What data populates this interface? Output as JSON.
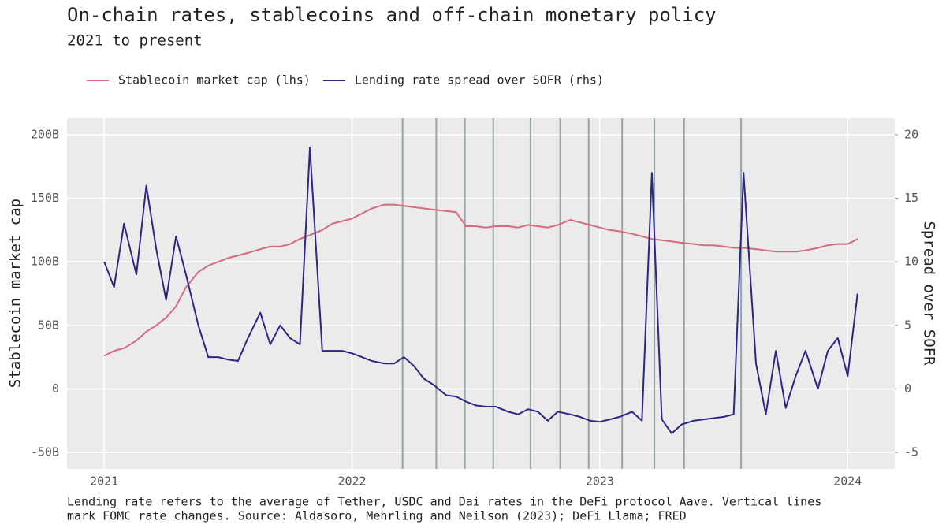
{
  "chart_data": {
    "type": "line",
    "title": "On-chain rates, stablecoins and off-chain monetary policy",
    "subtitle": "2021 to present",
    "ylabel": "Stablecoin market cap",
    "y2label": "Spread over SOFR",
    "note": [
      "Lending rate refers to the average of Tether, USDC and Dai rates in the DeFi protocol Aave. Vertical lines",
      "mark FOMC rate changes. Source: Aldasoro, Mehrling and Neilson (2023); DeFi Llama; FRED"
    ],
    "background": "#ebebeb",
    "grid": true,
    "legend": "top-left",
    "xlim": [
      2020.85,
      2024.19
    ],
    "xticks": [
      2021,
      2022,
      2023,
      2024
    ],
    "ylim": [
      -63,
      213
    ],
    "yticks": [
      {
        "value": -50,
        "label": "-50B"
      },
      0,
      {
        "value": 50,
        "label": "50B"
      },
      {
        "value": 100,
        "label": "100B"
      },
      {
        "value": 150,
        "label": "150B"
      },
      {
        "value": 200,
        "label": "200B"
      }
    ],
    "y2lim": [
      -6.3,
      21.3
    ],
    "y2ticks": [
      -5,
      0,
      5,
      10,
      15,
      20
    ],
    "fomc_dates": [
      2022.204,
      2022.34,
      2022.455,
      2022.57,
      2022.72,
      2022.84,
      2022.955,
      2023.09,
      2023.22,
      2023.34,
      2023.57
    ],
    "fomc_color": "#95a5a6",
    "x": [
      2021.0,
      2021.04,
      2021.08,
      2021.13,
      2021.17,
      2021.21,
      2021.25,
      2021.29,
      2021.33,
      2021.38,
      2021.42,
      2021.46,
      2021.5,
      2021.54,
      2021.58,
      2021.63,
      2021.67,
      2021.71,
      2021.75,
      2021.79,
      2021.83,
      2021.88,
      2021.92,
      2021.96,
      2022.0,
      2022.04,
      2022.08,
      2022.13,
      2022.17,
      2022.21,
      2022.25,
      2022.29,
      2022.33,
      2022.38,
      2022.42,
      2022.46,
      2022.5,
      2022.54,
      2022.58,
      2022.63,
      2022.67,
      2022.71,
      2022.75,
      2022.79,
      2022.83,
      2022.88,
      2022.92,
      2022.96,
      2023.0,
      2023.04,
      2023.08,
      2023.13,
      2023.17,
      2023.21,
      2023.25,
      2023.29,
      2023.33,
      2023.38,
      2023.42,
      2023.46,
      2023.5,
      2023.54,
      2023.58,
      2023.63,
      2023.67,
      2023.71,
      2023.75,
      2023.79,
      2023.83,
      2023.88,
      2023.92,
      2023.96,
      2024.0,
      2024.04
    ],
    "series": [
      {
        "name": "Stablecoin market cap (lhs)",
        "color": "#d46a7e",
        "axis": "y",
        "values": [
          26,
          30,
          32,
          38,
          45,
          50,
          56,
          65,
          80,
          92,
          97,
          100,
          103,
          105,
          107,
          110,
          112,
          112,
          114,
          118,
          121,
          125,
          130,
          132,
          134,
          138,
          142,
          145,
          145,
          144,
          143,
          142,
          141,
          140,
          139,
          128,
          128,
          127,
          128,
          128,
          127,
          129,
          128,
          127,
          129,
          133,
          131,
          129,
          127,
          125,
          124,
          122,
          120,
          118,
          117,
          116,
          115,
          114,
          113,
          113,
          112,
          111,
          111,
          110,
          109,
          108,
          108,
          108,
          109,
          111,
          113,
          114,
          114,
          118
        ]
      },
      {
        "name": "Lending rate spread over SOFR (rhs)",
        "color": "#2e2585",
        "axis": "y2",
        "values": [
          10,
          8,
          13,
          9,
          16,
          11,
          7,
          12,
          9,
          5,
          2.5,
          2.5,
          2.3,
          2.2,
          4,
          6,
          3.5,
          5,
          4,
          3.5,
          19,
          3,
          3,
          3,
          2.8,
          2.5,
          2.2,
          2.0,
          2.0,
          2.5,
          1.8,
          0.8,
          0.3,
          -0.5,
          -0.6,
          -1.0,
          -1.3,
          -1.4,
          -1.4,
          -1.8,
          -2.0,
          -1.6,
          -1.8,
          -2.5,
          -1.8,
          -2.0,
          -2.2,
          -2.5,
          -2.6,
          -2.4,
          -2.2,
          -1.8,
          -2.5,
          17,
          -2.4,
          -3.5,
          -2.8,
          -2.5,
          -2.4,
          -2.3,
          -2.2,
          -2.0,
          17,
          2,
          -2,
          3,
          -1.5,
          1,
          3,
          0,
          3,
          4,
          1,
          7.5
        ]
      }
    ]
  }
}
